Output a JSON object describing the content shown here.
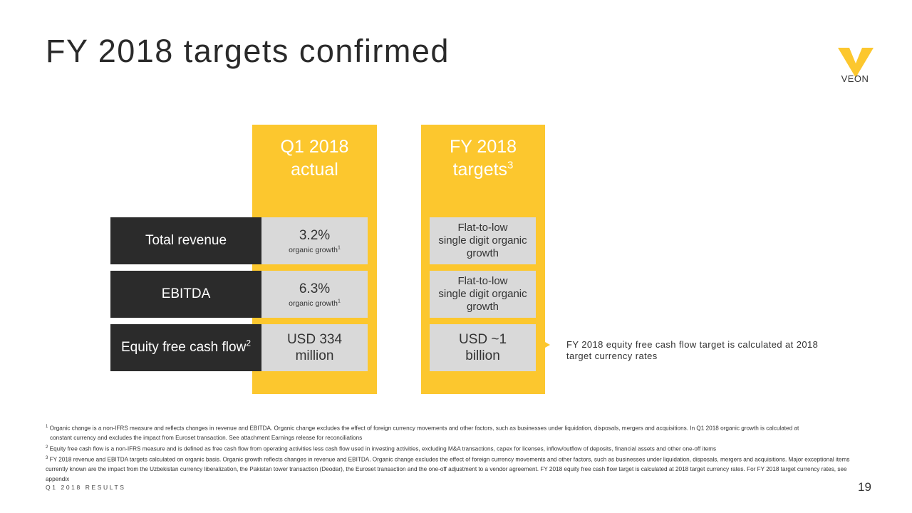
{
  "title": "FY 2018 targets confirmed",
  "logo": {
    "text": "VEON",
    "color": "#fcc72e"
  },
  "columns": {
    "q1": {
      "line1": "Q1 2018",
      "line2": "actual"
    },
    "fy": {
      "line1": "FY 2018",
      "line2": "targets",
      "sup": "3"
    }
  },
  "rows": [
    {
      "label": "Total revenue",
      "label_sup": "",
      "q1_value": "3.2%",
      "q1_sub": "organic growth",
      "q1_sub_sup": "1",
      "fy_lines": [
        "Flat-to-low",
        "single digit organic",
        "growth"
      ]
    },
    {
      "label": "EBITDA",
      "label_sup": "",
      "q1_value": "6.3%",
      "q1_sub": "organic growth",
      "q1_sub_sup": "1",
      "fy_lines": [
        "Flat-to-low",
        "single digit organic",
        "growth"
      ]
    },
    {
      "label": "Equity free cash flow",
      "label_sup": "2",
      "q1_lines": [
        "USD 334",
        "million"
      ],
      "fy_lines": [
        "USD ~1",
        "billion"
      ]
    }
  ],
  "note": "FY 2018 equity free cash flow target is calculated at 2018 target currency rates",
  "footnotes": {
    "fn1_sup": "1",
    "fn1_a": "Organic change is a non-IFRS measure and reflects changes in revenue and EBITDA. Organic change excludes the effect of foreign currency movements and other factors, such as businesses under liquidation, disposals, mergers and acquisitions. In Q1 2018 organic growth is calculated at",
    "fn1_b": "constant currency and excludes the impact from Euroset transaction. See attachment Earnings release for reconciliations",
    "fn2_sup": "2",
    "fn2": "Equity free cash flow is a non-IFRS measure and is defined as free cash flow from operating activities less cash flow used in investing activities, excluding M&A transactions, capex for licenses, inflow/outflow of deposits, financial assets and other one-off items",
    "fn3_sup": "3",
    "fn3": "FY 2018 revenue and EBITDA targets calculated on organic basis. Organic growth reflects changes in revenue and EBITDA. Organic change excludes the effect of foreign currency movements and other factors, such as businesses under liquidation, disposals, mergers and acquisitions. Major exceptional items currently known are the impact from the Uzbekistan currency liberalization, the Pakistan tower transaction (Deodar), the Euroset transaction and the one-off adjustment to a vendor agreement. FY 2018 equity free cash flow target is calculated at 2018 target currency rates. For FY 2018 target currency rates, see appendix"
  },
  "footer": {
    "left": "Q1 2018 RESULTS",
    "page": "19"
  },
  "colors": {
    "accent": "#fcc72e",
    "dark": "#2b2b2b",
    "cell": "#d9d9d9"
  }
}
